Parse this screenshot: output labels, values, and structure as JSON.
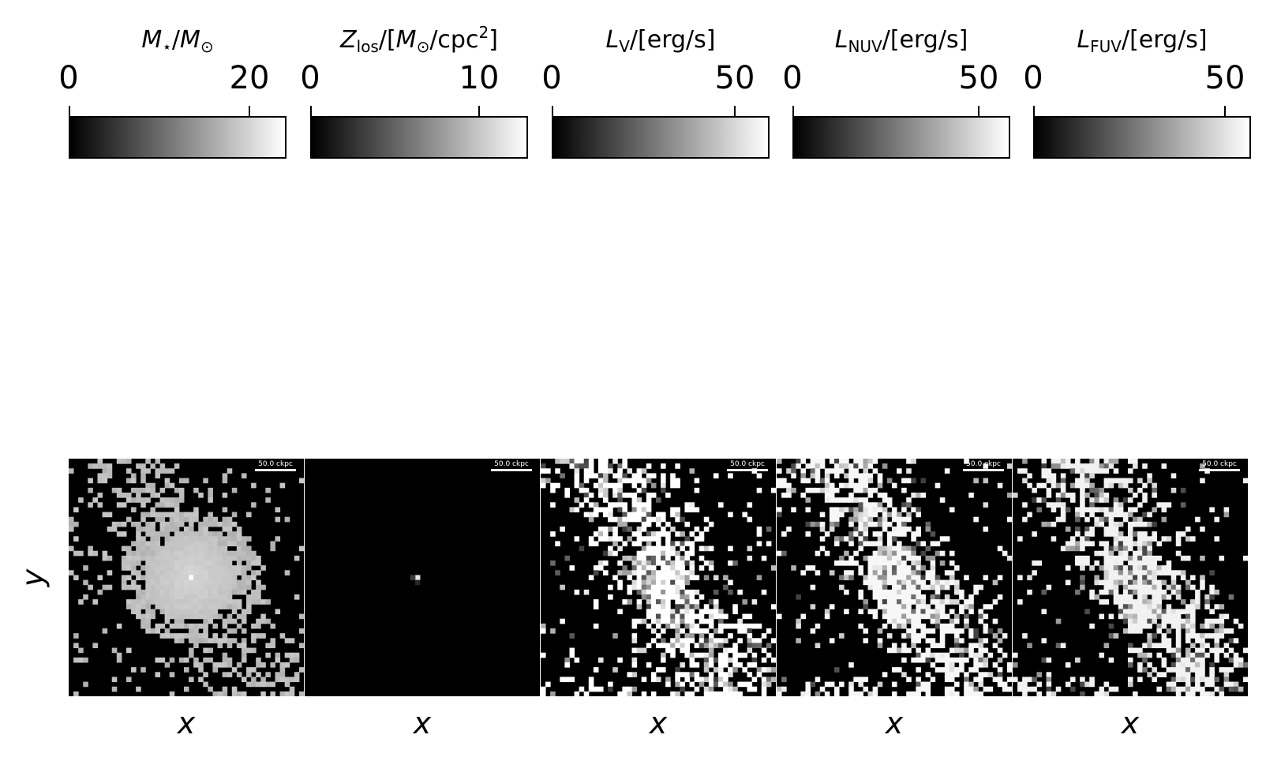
{
  "chart_data": [
    {
      "type": "heatmap",
      "title": "M⋆/M⊙",
      "cbar_ticks": [
        "0",
        "20"
      ],
      "cbar_range": [
        0,
        24.5
      ],
      "colormap": "gray",
      "scalebar": "50.0 ckpc",
      "xlabel": "x",
      "ylabel": "y"
    },
    {
      "type": "heatmap",
      "title": "Zlos/[M⊙/cpc2]",
      "cbar_ticks": [
        "0",
        "10"
      ],
      "cbar_range": [
        0,
        13
      ],
      "colormap": "gray",
      "scalebar": "50.0 ckpc",
      "xlabel": "x",
      "ylabel": ""
    },
    {
      "type": "heatmap",
      "title": "LV/[erg/s]",
      "cbar_ticks": [
        "0",
        "50"
      ],
      "cbar_range": [
        0,
        60
      ],
      "colormap": "gray",
      "scalebar": "50.0 ckpc",
      "xlabel": "x",
      "ylabel": ""
    },
    {
      "type": "heatmap",
      "title": "LNUV/[erg/s]",
      "cbar_ticks": [
        "0",
        "50"
      ],
      "cbar_range": [
        0,
        59
      ],
      "colormap": "gray",
      "scalebar": "50.0 ckpc",
      "xlabel": "x",
      "ylabel": ""
    },
    {
      "type": "heatmap",
      "title": "LFUV/[erg/s]",
      "cbar_ticks": [
        "0",
        "50"
      ],
      "cbar_range": [
        0,
        63
      ],
      "colormap": "gray",
      "scalebar": "50.0 ckpc",
      "xlabel": "x",
      "ylabel": ""
    }
  ],
  "titles": {
    "m_sym": "M",
    "m_sub": "⋆",
    "m_rest": "/",
    "m_sym2": "M",
    "m_sub2": "⊙",
    "z_sym": "Z",
    "z_sub": "los",
    "z_mid": "/[",
    "z_sym2": "M",
    "z_sub2": "⊙",
    "z_rest": "/cpc",
    "z_sup": "2",
    "z_end": "]",
    "v_sym": "L",
    "v_sub": "V",
    "v_rest": "/[erg/s]",
    "n_sym": "L",
    "n_sub": "NUV",
    "n_rest": "/[erg/s]",
    "f_sym": "L",
    "f_sub": "FUV",
    "f_rest": "/[erg/s]"
  },
  "ticks": {
    "p1": [
      "0",
      "20"
    ],
    "p2": [
      "0",
      "10"
    ],
    "p3": [
      "0",
      "50"
    ],
    "p4": [
      "0",
      "50"
    ],
    "p5": [
      "0",
      "50"
    ]
  },
  "scalebar_label": "50.0 ckpc",
  "axis": {
    "x": "x",
    "y": "y"
  }
}
